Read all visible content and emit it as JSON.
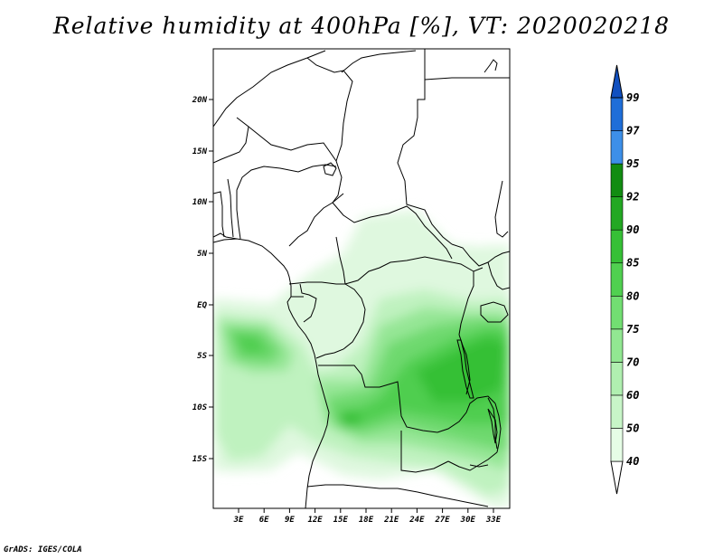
{
  "title": "Relative humidity at 400hPa [%], VT: 2020020218",
  "credit": "GrADS: IGES/COLA",
  "map": {
    "lat_labels": [
      "20N",
      "15N",
      "10N",
      "5N",
      "EQ",
      "5S",
      "10S",
      "15S"
    ],
    "lon_labels": [
      "3E",
      "6E",
      "9E",
      "12E",
      "15E",
      "18E",
      "21E",
      "24E",
      "27E",
      "30E",
      "33E"
    ]
  },
  "colorbar": {
    "levels": [
      "40",
      "50",
      "60",
      "70",
      "75",
      "80",
      "85",
      "90",
      "92",
      "95",
      "97",
      "99"
    ],
    "colors": [
      "#ffffff",
      "#e6fde6",
      "#c8f5c8",
      "#b0efb0",
      "#92e792",
      "#72de72",
      "#50d050",
      "#36c036",
      "#23a823",
      "#128c12",
      "#3d8fe8",
      "#1f6ed8",
      "#1150c0"
    ]
  }
}
